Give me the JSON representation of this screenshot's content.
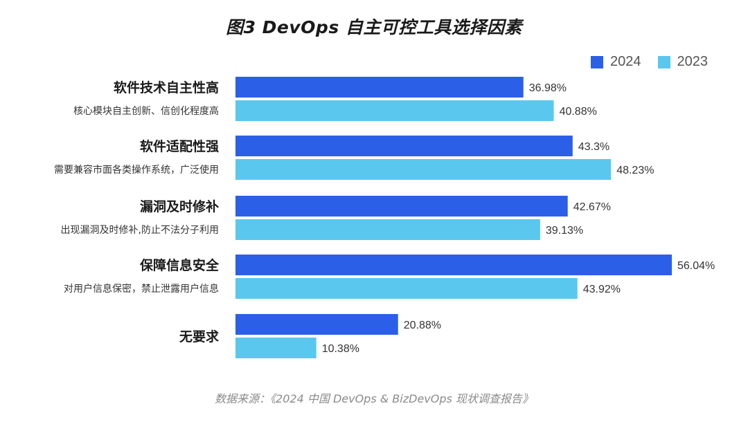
{
  "chart_data": {
    "type": "bar",
    "orientation": "horizontal",
    "title": "图3 DevOps 自主可控工具选择因素",
    "categories": [
      {
        "label": "软件技术自主性高",
        "sublabel": "核心模块自主创新、信创化程度高"
      },
      {
        "label": "软件适配性强",
        "sublabel": "需要兼容市面各类操作系统，广泛使用"
      },
      {
        "label": "漏洞及时修补",
        "sublabel": "出现漏洞及时修补,防止不法分子利用"
      },
      {
        "label": "保障信息安全",
        "sublabel": "对用户信息保密，禁止泄露用户信息"
      },
      {
        "label": "无要求",
        "sublabel": ""
      }
    ],
    "series": [
      {
        "name": "2024",
        "color": "#2b5fe8",
        "values": [
          36.98,
          43.3,
          42.67,
          56.04,
          20.88
        ],
        "labels": [
          "36.98%",
          "43.3%",
          "42.67%",
          "56.04%",
          "20.88%"
        ]
      },
      {
        "name": "2023",
        "color": "#5ac8ee",
        "values": [
          40.88,
          48.23,
          39.13,
          43.92,
          10.38
        ],
        "labels": [
          "40.88%",
          "48.23%",
          "39.13%",
          "43.92%",
          "10.38%"
        ]
      }
    ],
    "xlim": [
      0,
      56.04
    ],
    "legend_position": "top-right",
    "source": "数据来源：《2024 中国 DevOps & BizDevOps 现状调查报告》"
  }
}
